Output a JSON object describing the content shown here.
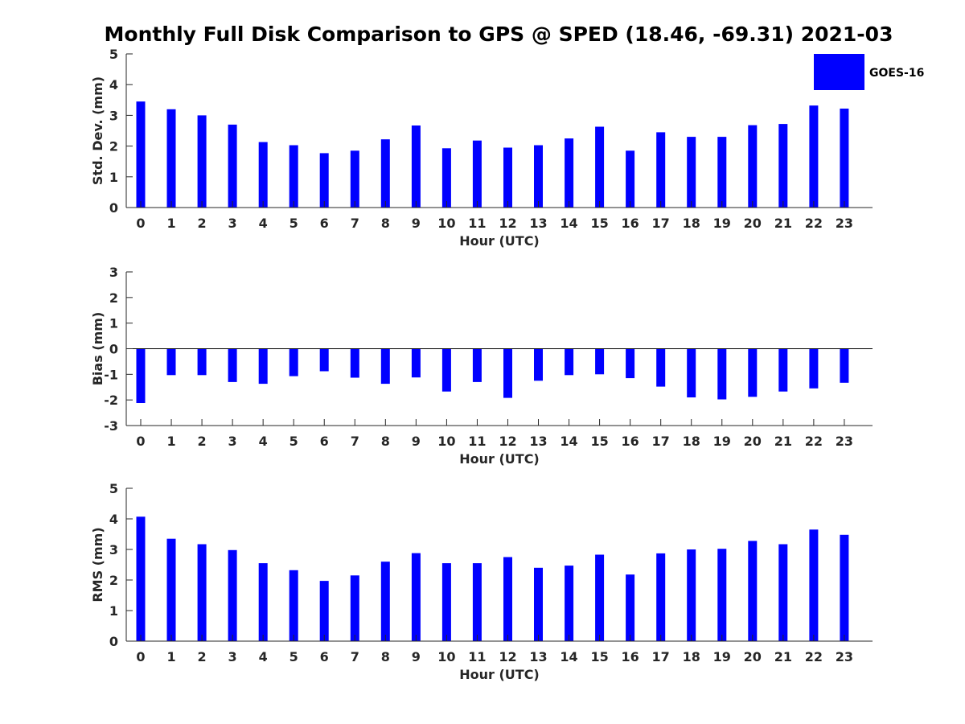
{
  "title": "Monthly Full Disk Comparison to GPS @ SPED (18.46, -69.31) 2021-03",
  "legend": {
    "label": "GOES-16",
    "color": "#0000ff"
  },
  "chart_data": [
    {
      "type": "bar",
      "title": "",
      "xlabel": "Hour (UTC)",
      "ylabel": "Std. Dev. (mm)",
      "ylim": [
        0,
        5
      ],
      "yticks": [
        0,
        1,
        2,
        3,
        4,
        5
      ],
      "categories": [
        "0",
        "1",
        "2",
        "3",
        "4",
        "5",
        "6",
        "7",
        "8",
        "9",
        "10",
        "11",
        "12",
        "13",
        "14",
        "15",
        "16",
        "17",
        "18",
        "19",
        "20",
        "21",
        "22",
        "23"
      ],
      "series": [
        {
          "name": "GOES-16",
          "color": "#0000ff",
          "values": [
            3.45,
            3.2,
            3.0,
            2.7,
            2.13,
            2.03,
            1.77,
            1.85,
            2.22,
            2.67,
            1.93,
            2.18,
            1.95,
            2.03,
            2.25,
            2.63,
            1.85,
            2.45,
            2.3,
            2.3,
            2.68,
            2.72,
            3.32,
            3.22
          ]
        }
      ],
      "legend": "top-right",
      "grid": false
    },
    {
      "type": "bar",
      "title": "",
      "xlabel": "Hour (UTC)",
      "ylabel": "Bias (mm)",
      "ylim": [
        -3,
        3
      ],
      "yticks": [
        -3,
        -2,
        -1,
        0,
        1,
        2,
        3
      ],
      "categories": [
        "0",
        "1",
        "2",
        "3",
        "4",
        "5",
        "6",
        "7",
        "8",
        "9",
        "10",
        "11",
        "12",
        "13",
        "14",
        "15",
        "16",
        "17",
        "18",
        "19",
        "20",
        "21",
        "22",
        "23"
      ],
      "series": [
        {
          "name": "GOES-16",
          "color": "#0000ff",
          "values": [
            -2.12,
            -1.03,
            -1.03,
            -1.3,
            -1.37,
            -1.07,
            -0.88,
            -1.13,
            -1.37,
            -1.12,
            -1.67,
            -1.3,
            -1.92,
            -1.25,
            -1.03,
            -1.0,
            -1.15,
            -1.48,
            -1.9,
            -1.98,
            -1.88,
            -1.67,
            -1.55,
            -1.33
          ]
        }
      ],
      "grid": false
    },
    {
      "type": "bar",
      "title": "",
      "xlabel": "Hour (UTC)",
      "ylabel": "RMS (mm)",
      "ylim": [
        0,
        5
      ],
      "yticks": [
        0,
        1,
        2,
        3,
        4,
        5
      ],
      "categories": [
        "0",
        "1",
        "2",
        "3",
        "4",
        "5",
        "6",
        "7",
        "8",
        "9",
        "10",
        "11",
        "12",
        "13",
        "14",
        "15",
        "16",
        "17",
        "18",
        "19",
        "20",
        "21",
        "22",
        "23"
      ],
      "series": [
        {
          "name": "GOES-16",
          "color": "#0000ff",
          "values": [
            4.07,
            3.35,
            3.17,
            2.98,
            2.55,
            2.32,
            1.97,
            2.15,
            2.6,
            2.88,
            2.55,
            2.55,
            2.75,
            2.4,
            2.47,
            2.83,
            2.18,
            2.87,
            3.0,
            3.02,
            3.28,
            3.17,
            3.65,
            3.48
          ]
        }
      ],
      "grid": false
    }
  ]
}
